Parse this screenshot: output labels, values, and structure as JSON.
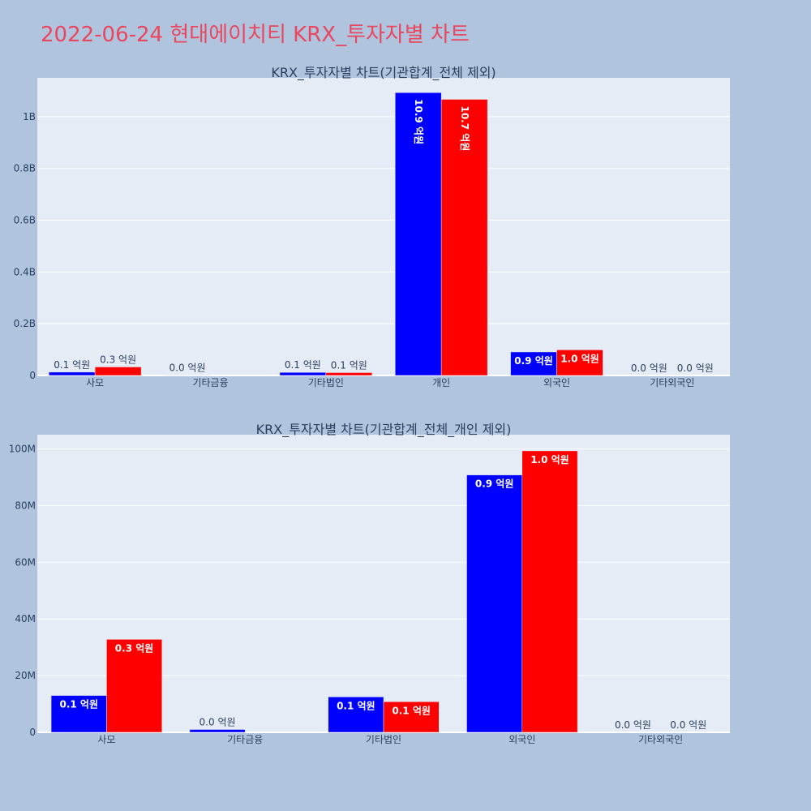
{
  "title": "2022-06-24 현대에이치티 KRX_투자자별 차트",
  "colors": {
    "buy": "#0000ff",
    "sell": "#ff0000",
    "background": "#b0c4de",
    "plot": "#e5ecf6",
    "title": "#e8475f"
  },
  "chart_data": [
    {
      "type": "bar",
      "title": "KRX_투자자별 차트(기관합계_전체 제외)",
      "categories": [
        "사모",
        "기타금융",
        "기타법인",
        "개인",
        "외국인",
        "기타외국인"
      ],
      "series": [
        {
          "values": [
            13000000,
            1000000,
            12000000,
            1093000000,
            91000000,
            0
          ],
          "labels": [
            "0.1 억원",
            "0.0 억원",
            "0.1 억원",
            "10.9 억원",
            "0.9 억원",
            "0.0 억원"
          ]
        },
        {
          "values": [
            33000000,
            0,
            11000000,
            1067000000,
            99000000,
            0
          ],
          "labels": [
            "0.3 억원",
            "",
            "0.1 억원",
            "10.7 억원",
            "1.0 억원",
            "0.0 억원"
          ]
        }
      ],
      "ylim": [
        0,
        1150000000
      ],
      "yticks": [
        0,
        200000000,
        400000000,
        600000000,
        800000000,
        1000000000
      ],
      "ytick_labels": [
        "0",
        "0.2B",
        "0.4B",
        "0.6B",
        "0.8B",
        "1B"
      ],
      "grid": true
    },
    {
      "type": "bar",
      "title": "KRX_투자자별 차트(기관합계_전체_개인 제외)",
      "categories": [
        "사모",
        "기타금융",
        "기타법인",
        "외국인",
        "기타외국인"
      ],
      "series": [
        {
          "values": [
            13000000,
            1000000,
            12500000,
            90800000,
            0
          ],
          "labels": [
            "0.1 억원",
            "0.0 억원",
            "0.1 억원",
            "0.9 억원",
            "0.0 억원"
          ]
        },
        {
          "values": [
            32800000,
            0,
            10800000,
            99300000,
            0
          ],
          "labels": [
            "0.3 억원",
            "",
            "0.1 억원",
            "1.0 억원",
            "0.0 억원"
          ]
        }
      ],
      "ylim": [
        0,
        105000000
      ],
      "yticks": [
        0,
        20000000,
        40000000,
        60000000,
        80000000,
        100000000
      ],
      "ytick_labels": [
        "0",
        "20M",
        "40M",
        "60M",
        "80M",
        "100M"
      ],
      "grid": true
    }
  ]
}
